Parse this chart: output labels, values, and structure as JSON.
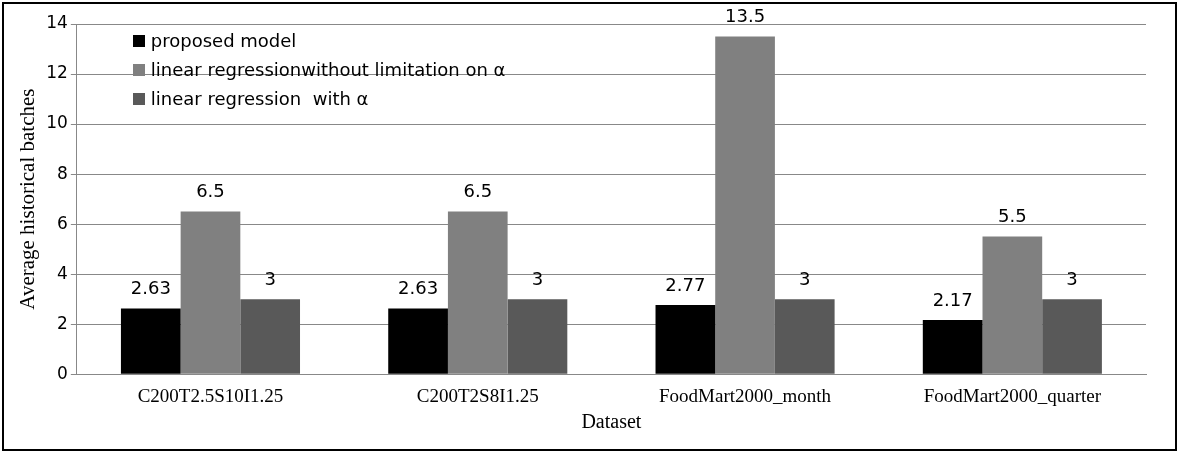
{
  "chart_data": {
    "type": "bar",
    "xlabel": "Dataset",
    "ylabel": "Average historical batches",
    "categories": [
      "C200T2.5S10I1.25",
      "C200T2S8I1.25",
      "FoodMart2000_month",
      "FoodMart2000_quarter"
    ],
    "series": [
      {
        "name": "proposed model",
        "color": "#000000",
        "values": [
          2.63,
          2.63,
          2.77,
          2.17
        ]
      },
      {
        "name": "linear regressionwithout limitation on α",
        "color": "#808080",
        "values": [
          6.5,
          6.5,
          13.5,
          5.5
        ]
      },
      {
        "name": "linear regression  with α",
        "color": "#595959",
        "values": [
          3,
          3,
          3,
          3
        ]
      }
    ],
    "ylim": [
      0,
      14
    ],
    "yticks": [
      0,
      2,
      4,
      6,
      8,
      10,
      12,
      14
    ],
    "grid": "y",
    "legend": "top left",
    "data_labels": true
  }
}
